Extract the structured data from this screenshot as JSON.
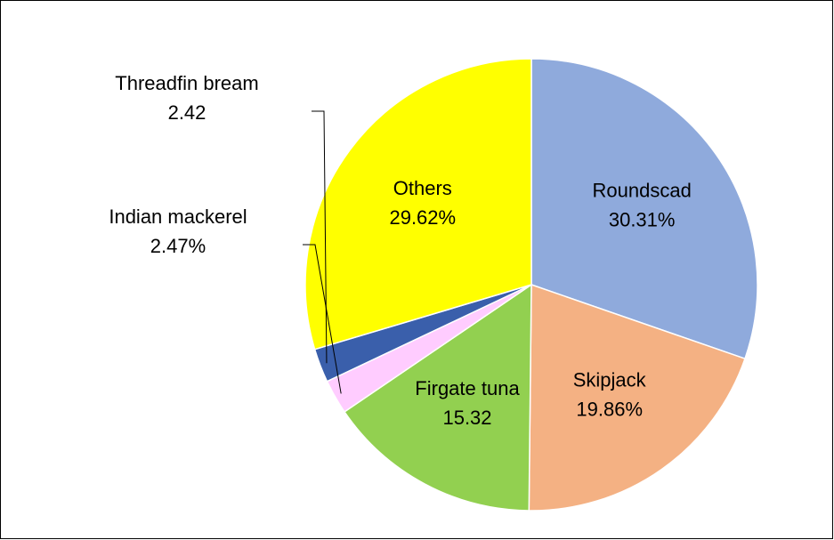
{
  "chart_data": {
    "type": "pie",
    "categories": [
      "Roundscad",
      "Skipjack",
      "Firgate tuna",
      "Indian mackerel",
      "Threadfin bream",
      "Others"
    ],
    "values": [
      30.31,
      19.86,
      15.32,
      2.47,
      2.42,
      29.62
    ],
    "value_labels": [
      "30.31%",
      "19.86%",
      "15.32",
      "2.47%",
      "2.42",
      "29.62%"
    ],
    "colors": [
      "#8faadc",
      "#f4b183",
      "#92d050",
      "#ffccff",
      "#3a5fab",
      "#ffff00"
    ]
  }
}
